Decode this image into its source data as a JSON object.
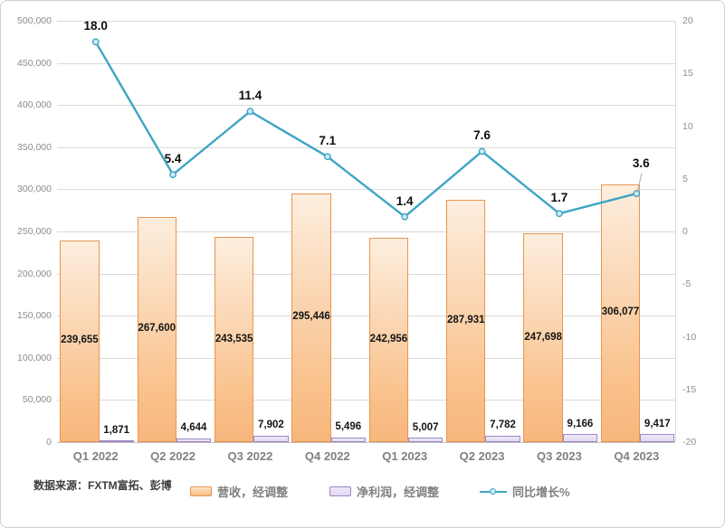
{
  "source_note": "数据来源：FXTM富拓、彭博",
  "chart_data": {
    "type": "combo-bar-line",
    "categories": [
      "Q1 2022",
      "Q2 2022",
      "Q3 2022",
      "Q4 2022",
      "Q1 2023",
      "Q2 2023",
      "Q3 2023",
      "Q4 2023"
    ],
    "series": [
      {
        "name": "营收，经调整",
        "type": "bar",
        "axis": "left",
        "values": [
          239655,
          267600,
          243535,
          295446,
          242956,
          287931,
          247698,
          306077
        ],
        "labels": [
          "239,655",
          "267,600",
          "243,535",
          "295,446",
          "242,956",
          "287,931",
          "247,698",
          "306,077"
        ]
      },
      {
        "name": "净利润，经调整",
        "type": "bar",
        "axis": "left",
        "values": [
          1871,
          4644,
          7902,
          5496,
          5007,
          7782,
          9166,
          9417
        ],
        "labels": [
          "1,871",
          "4,644",
          "7,902",
          "5,496",
          "5,007",
          "7,782",
          "9,166",
          "9,417"
        ]
      },
      {
        "name": "同比增长%",
        "type": "line",
        "axis": "right",
        "values": [
          18.0,
          5.4,
          11.4,
          7.1,
          1.4,
          7.6,
          1.7,
          3.6
        ],
        "labels": [
          "18.0",
          "5.4",
          "11.4",
          "7.1",
          "1.4",
          "7.6",
          "1.7",
          "3.6"
        ]
      }
    ],
    "left_axis": {
      "min": 0,
      "max": 500000,
      "step": 50000,
      "ticks": [
        "500,000",
        "450,000",
        "400,000",
        "350,000",
        "300,000",
        "250,000",
        "200,000",
        "150,000",
        "100,000",
        "50,000",
        "0"
      ]
    },
    "right_axis": {
      "min": -20,
      "max": 20,
      "step": 5,
      "ticks": [
        "20",
        "15",
        "10",
        "5",
        "0",
        "-5",
        "-10",
        "-15",
        "-20"
      ]
    },
    "grid": true,
    "legend_position": "bottom",
    "source": "数据来源：FXTM富拓、彭博",
    "colors": {
      "revenue_border": "#e8954f",
      "revenue_fill_top": "#fdeedf",
      "revenue_fill_bottom": "#f7b77d",
      "profit_border": "#9c86c6",
      "profit_fill": "#e9e1f4",
      "line": "#3fa5c5",
      "marker_fill": "#cfeaf4",
      "gridline": "#d9d9d9",
      "axis_text": "#8c8c8c",
      "category_text": "#808080",
      "data_label_text": "#141414",
      "source_text": "#3f3f3f"
    }
  }
}
